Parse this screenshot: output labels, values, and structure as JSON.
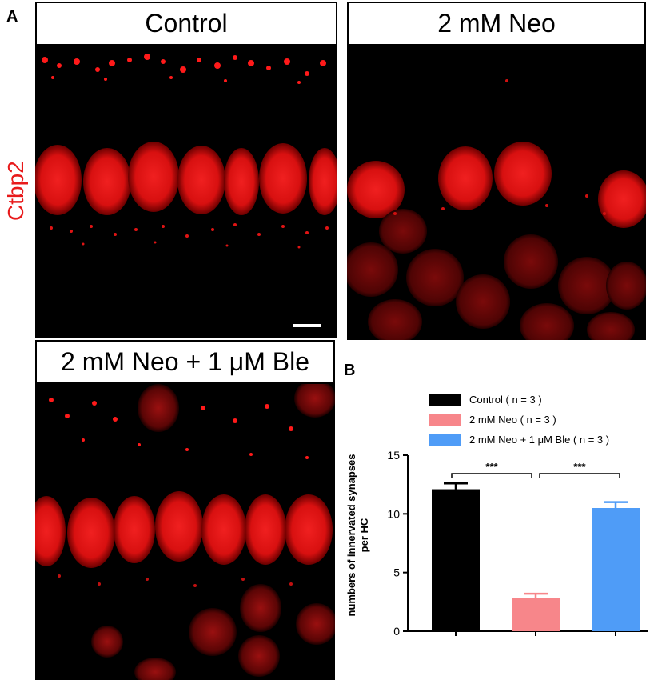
{
  "figure": {
    "panel_a": "A",
    "panel_b": "B",
    "stain_label": "Ctbp2",
    "stain_color": "#e8191a",
    "panels": {
      "control": "Control",
      "neo": "2 mM Neo",
      "neo_ble": "2 mM Neo + 1 μM Ble"
    }
  },
  "chart_data": {
    "type": "bar",
    "categories": [
      "Control",
      "2 mM Neo",
      "2 mM Neo + 1 μM Ble"
    ],
    "series": [
      {
        "name": "Control",
        "legend_label": "Control  ( n = 3 )",
        "value": 12.1,
        "error": 0.5,
        "color": "#000000"
      },
      {
        "name": "2 mM Neo",
        "legend_label": "2 mM Neo ( n = 3 )",
        "value": 2.8,
        "error": 0.4,
        "color": "#f7868a"
      },
      {
        "name": "2 mM Neo + 1 μM Ble",
        "legend_label": "2 mM Neo + 1 μM Ble ( n = 3 )",
        "value": 10.5,
        "error": 0.5,
        "color": "#4f9cf7"
      }
    ],
    "ylabel_line1": "numbers of innervated synapses",
    "ylabel_line2": "per HC",
    "ylim": [
      0,
      15
    ],
    "yticks": [
      "0",
      "5",
      "10",
      "15"
    ],
    "ytick_values": [
      0,
      5,
      10,
      15
    ],
    "significance": [
      {
        "between": [
          0,
          1
        ],
        "label": "***"
      },
      {
        "between": [
          1,
          2
        ],
        "label": "***"
      }
    ],
    "legend_position": "top",
    "grid": false
  }
}
